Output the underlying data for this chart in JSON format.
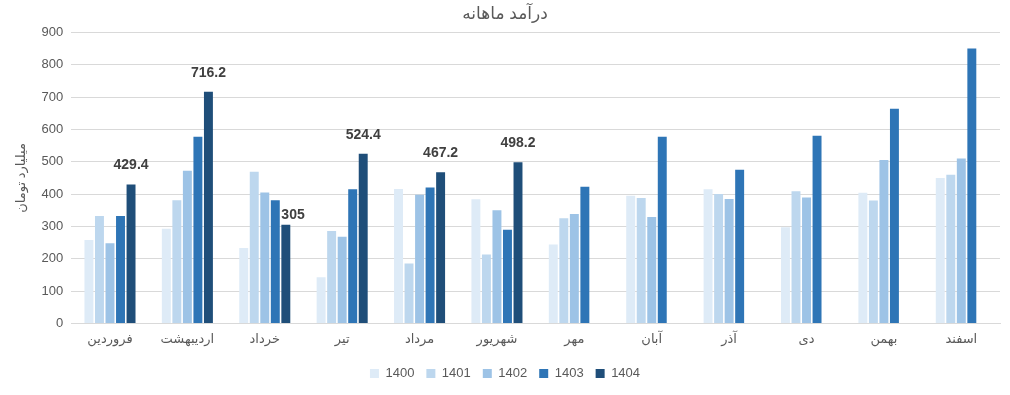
{
  "chart_data": {
    "type": "bar",
    "title": "درآمد ماهانه",
    "ylabel": "میلیارد تومان",
    "categories": [
      "فروردین",
      "اردیبهشت",
      "خرداد",
      "تیر",
      "مرداد",
      "شهریور",
      "مهر",
      "آبان",
      "آذر",
      "دی",
      "بهمن",
      "اسفند"
    ],
    "series": [
      {
        "name": "1400",
        "color": "#deebf7",
        "values": [
          258,
          293,
          233,
          143,
          416,
          384,
          244,
          395,
          415,
          297,
          404,
          450
        ]
      },
      {
        "name": "1401",
        "color": "#bdd7ee",
        "values": [
          332,
          381,
          469,
          286,
          185,
          213,
          325,
          388,
          400,
          409,
          380,
          460
        ]
      },
      {
        "name": "1402",
        "color": "#9dc3e6",
        "values": [
          248,
          472,
          405,
          268,
          398,
          350,
          338,
          329,
          385,
          389,
          505,
          510
        ]
      },
      {
        "name": "1403",
        "color": "#2e75b6",
        "values": [
          332,
          577,
          381,
          415,
          420,
          290,
          423,
          577,
          475,
          580,
          664,
          850
        ]
      },
      {
        "name": "1404",
        "color": "#1f4e79",
        "values": [
          429.4,
          716.2,
          305,
          524.4,
          467.2,
          498.2,
          null,
          null,
          null,
          null,
          null,
          null
        ],
        "value_labels": [
          "429.4",
          "716.2",
          "305",
          "524.4",
          "467.2",
          "498.2",
          null,
          null,
          null,
          null,
          null,
          null
        ]
      }
    ],
    "ylim": [
      0,
      900
    ],
    "yticks": [
      0,
      100,
      200,
      300,
      400,
      500,
      600,
      700,
      800,
      900
    ],
    "grid": "y",
    "legend": "bottom"
  }
}
